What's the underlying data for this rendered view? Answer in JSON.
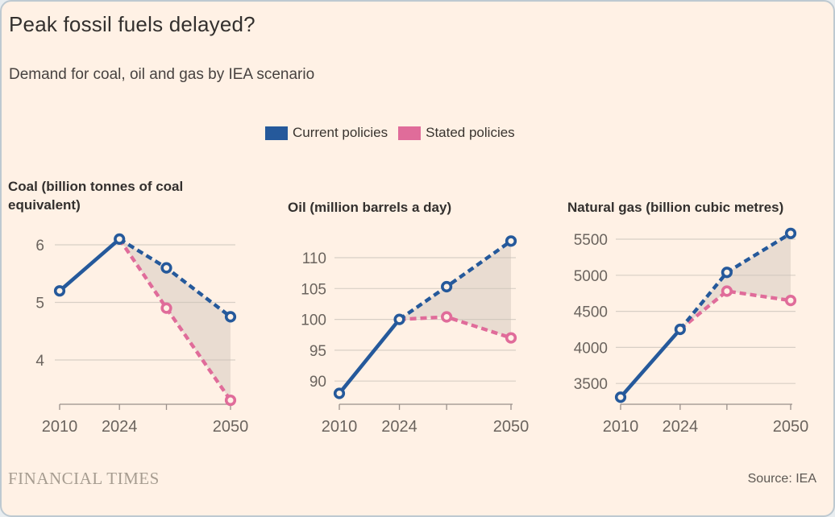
{
  "header": {
    "title": "Peak fossil fuels delayed?",
    "subtitle": "Demand for coal, oil and gas by IEA scenario"
  },
  "legend": {
    "items": [
      {
        "label": "Current policies",
        "color": "#25599b"
      },
      {
        "label": "Stated policies",
        "color": "#e06c9a"
      }
    ],
    "position": "top"
  },
  "footer": {
    "brand": "FINANCIAL TIMES",
    "source": "Source: IEA"
  },
  "colors": {
    "background": "#fff1e5",
    "band": "#cfc3b8",
    "grid": "#d8cfc5",
    "axis": "#99908a",
    "tick_text": "#6b645e",
    "title_text": "#33302e",
    "current_policies": "#25599b",
    "stated_policies": "#e06c9a"
  },
  "chart_data": [
    {
      "type": "line",
      "id": "coal",
      "title": "Coal (billion tonnes of coal equivalent)",
      "x_years": [
        2010,
        2024,
        2035,
        2050
      ],
      "xticks": [
        {
          "year": 2010,
          "label": "2010"
        },
        {
          "year": 2024,
          "label": "2024"
        },
        {
          "year": 2035,
          "label": ""
        },
        {
          "year": 2050,
          "label": "2050"
        }
      ],
      "yticks": [
        6,
        5,
        4
      ],
      "ylim": [
        3.2,
        6.4
      ],
      "grid": true,
      "series": [
        {
          "name": "Current policies",
          "values": [
            5.2,
            6.1,
            5.6,
            4.75
          ],
          "solid_until_year": 2024,
          "dashed_after": true
        },
        {
          "name": "Stated policies",
          "values": [
            null,
            6.1,
            4.9,
            3.3
          ],
          "dashed": true
        }
      ],
      "band_between_series_from_year": 2024
    },
    {
      "type": "line",
      "id": "oil",
      "title": "Oil (million barrels a day)",
      "x_years": [
        2010,
        2024,
        2035,
        2050
      ],
      "xticks": [
        {
          "year": 2010,
          "label": "2010"
        },
        {
          "year": 2024,
          "label": "2024"
        },
        {
          "year": 2035,
          "label": ""
        },
        {
          "year": 2050,
          "label": "2050"
        }
      ],
      "yticks": [
        110,
        105,
        100,
        95,
        90
      ],
      "ylim": [
        86,
        114
      ],
      "grid": true,
      "series": [
        {
          "name": "Current policies",
          "values": [
            88,
            100,
            105.3,
            112.7
          ],
          "solid_until_year": 2024,
          "dashed_after": true
        },
        {
          "name": "Stated policies",
          "values": [
            null,
            100,
            100.4,
            97
          ],
          "dashed": true
        }
      ],
      "band_between_series_from_year": 2024
    },
    {
      "type": "line",
      "id": "natural-gas",
      "title": "Natural gas (billion cubic metres)",
      "x_years": [
        2010,
        2024,
        2035,
        2050
      ],
      "xticks": [
        {
          "year": 2010,
          "label": "2010"
        },
        {
          "year": 2024,
          "label": "2024"
        },
        {
          "year": 2035,
          "label": ""
        },
        {
          "year": 2050,
          "label": "2050"
        }
      ],
      "yticks": [
        5500,
        5000,
        4500,
        4000,
        3500
      ],
      "ylim": [
        3250,
        5700
      ],
      "grid": true,
      "series": [
        {
          "name": "Current policies",
          "values": [
            3310,
            4250,
            5040,
            5580
          ],
          "solid_until_year": 2024,
          "dashed_after": true
        },
        {
          "name": "Stated policies",
          "values": [
            null,
            4250,
            4780,
            4650
          ],
          "dashed": true
        }
      ],
      "band_between_series_from_year": 2024
    }
  ]
}
